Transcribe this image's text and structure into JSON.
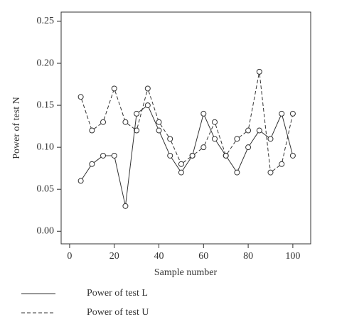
{
  "chart_data": {
    "type": "line",
    "xlabel": "Sample number",
    "ylabel": "Power of test N",
    "x": [
      5,
      10,
      15,
      20,
      25,
      30,
      35,
      40,
      45,
      50,
      55,
      60,
      65,
      70,
      75,
      80,
      85,
      90,
      95,
      100
    ],
    "series": [
      {
        "name": "Power of test L",
        "color": "#333333",
        "linestyle": "solid",
        "values": [
          0.06,
          0.08,
          0.09,
          0.09,
          0.03,
          0.14,
          0.15,
          0.12,
          0.09,
          0.07,
          0.09,
          0.14,
          0.11,
          0.09,
          0.07,
          0.1,
          0.12,
          0.11,
          0.14,
          0.09
        ]
      },
      {
        "name": "Power of test U",
        "color": "#333333",
        "linestyle": "dashed",
        "values": [
          0.16,
          0.12,
          0.13,
          0.17,
          0.13,
          0.12,
          0.17,
          0.13,
          0.11,
          0.08,
          0.09,
          0.1,
          0.13,
          0.09,
          0.11,
          0.12,
          0.19,
          0.07,
          0.08,
          0.14
        ]
      }
    ],
    "xlim": [
      -3.8,
      108
    ],
    "xticks": [
      0,
      20,
      40,
      60,
      80,
      100
    ],
    "ylim": [
      -0.015,
      0.261
    ],
    "yticks": [
      {
        "value": 0,
        "label": "0.00"
      },
      0.05,
      {
        "value": 0.1,
        "label": "0.10"
      },
      0.15,
      {
        "value": 0.2,
        "label": "0.20"
      },
      0.25
    ],
    "marker": "open-circle",
    "legend": "bottom"
  }
}
